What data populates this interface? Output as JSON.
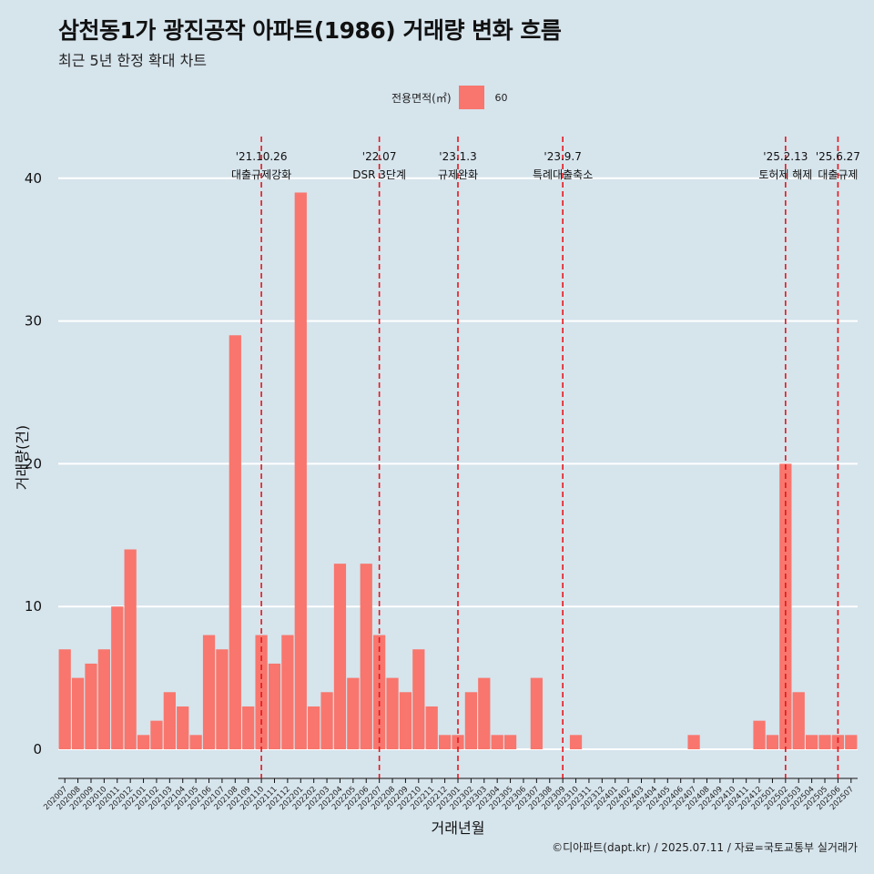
{
  "header": {
    "title": "삼천동1가 광진공작 아파트(1986) 거래량 변화 흐름",
    "subtitle": "최근 5년 한정 확대 차트"
  },
  "legend": {
    "title": "전용면적(㎡)",
    "items": [
      {
        "label": "60",
        "color": "#f8766d"
      }
    ]
  },
  "caption": "©디아파트(dapt.kr) / 2025.07.11 / 자료=국토교통부 실거래가",
  "colors": {
    "background": "#d6e4ec",
    "bar": "#f8766d",
    "event_line": "#e8151c",
    "grid": "#ffffff"
  },
  "chart_data": {
    "type": "bar",
    "xlabel": "거래년월",
    "ylabel": "거래량(건)",
    "ylim": [
      0,
      42
    ],
    "yticks": [
      0,
      10,
      20,
      30,
      40
    ],
    "grid": "horizontal",
    "legend_position": "top",
    "categories": [
      "202007",
      "202008",
      "202009",
      "202010",
      "202011",
      "202012",
      "202101",
      "202102",
      "202103",
      "202104",
      "202105",
      "202106",
      "202107",
      "202108",
      "202109",
      "202110",
      "202111",
      "202112",
      "202201",
      "202202",
      "202203",
      "202204",
      "202205",
      "202206",
      "202207",
      "202208",
      "202209",
      "202210",
      "202211",
      "202212",
      "202301",
      "202302",
      "202303",
      "202304",
      "202305",
      "202306",
      "202307",
      "202308",
      "202309",
      "202310",
      "202311",
      "202312",
      "202401",
      "202402",
      "202403",
      "202404",
      "202405",
      "202406",
      "202407",
      "202408",
      "202409",
      "202410",
      "202411",
      "202412",
      "202501",
      "202502",
      "202503",
      "202504",
      "202505",
      "202506",
      "202507"
    ],
    "series": [
      {
        "name": "60",
        "values": [
          7,
          5,
          6,
          7,
          10,
          14,
          1,
          2,
          4,
          3,
          1,
          8,
          7,
          29,
          3,
          8,
          6,
          8,
          39,
          3,
          4,
          13,
          5,
          13,
          8,
          5,
          4,
          7,
          3,
          1,
          1,
          4,
          5,
          1,
          1,
          0,
          5,
          0,
          0,
          1,
          0,
          0,
          0,
          0,
          0,
          0,
          0,
          0,
          1,
          0,
          0,
          0,
          0,
          2,
          1,
          20,
          4,
          1,
          1,
          1,
          1
        ]
      }
    ],
    "events": [
      {
        "date_label": "'21.10.26",
        "label": "대출규제강화",
        "at": "202110"
      },
      {
        "date_label": "'22.07",
        "label": "DSR 3단계",
        "at": "202207"
      },
      {
        "date_label": "'23.1.3",
        "label": "규제완화",
        "at": "202301"
      },
      {
        "date_label": "'23.9.7",
        "label": "특례대출축소",
        "at": "202309"
      },
      {
        "date_label": "'25.2.13",
        "label": "토허제 해제",
        "at": "202502"
      },
      {
        "date_label": "'25.6.27",
        "label": "대출규제",
        "at": "202506"
      }
    ]
  }
}
